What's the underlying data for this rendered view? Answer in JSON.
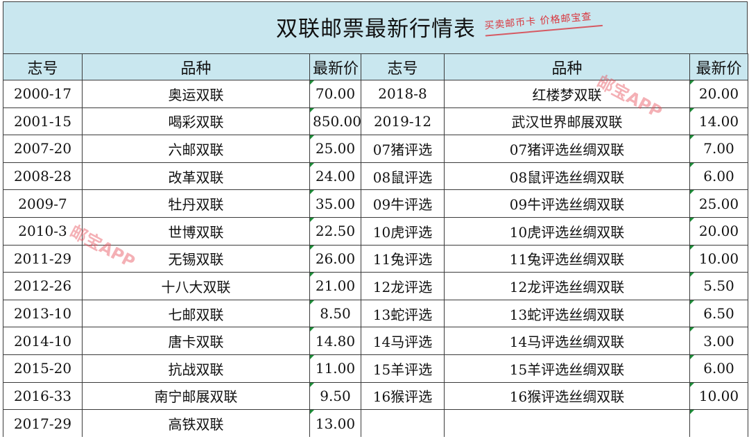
{
  "title": "双联邮票最新行情表",
  "stamp_text": "买卖邮币卡 价格邮宝查",
  "watermark": "邮宝APP",
  "colors": {
    "header_bg": "#c9e7ef",
    "grid_line": "#3a3a3a",
    "stamp_red": "#d9363e",
    "cell_marker": "#1f8f3a"
  },
  "headers": [
    "志号",
    "品种",
    "最新价",
    "志号",
    "品种",
    "最新价"
  ],
  "rows": [
    [
      "2000-17",
      "奥运双联",
      "70.00",
      "2018-8",
      "红楼梦双联",
      "20.00"
    ],
    [
      "2001-15",
      "喝彩双联",
      "850.00",
      "2019-12",
      "武汉世界邮展双联",
      "14.00"
    ],
    [
      "2007-20",
      "六邮双联",
      "25.00",
      "07猪评选",
      "07猪评选丝绸双联",
      "7.00"
    ],
    [
      "2008-28",
      "改革双联",
      "24.00",
      "08鼠评选",
      "08鼠评选丝绸双联",
      "6.00"
    ],
    [
      "2009-7",
      "牡丹双联",
      "35.00",
      "09牛评选",
      "09牛评选丝绸双联",
      "25.00"
    ],
    [
      "2010-3",
      "世博双联",
      "22.50",
      "10虎评选",
      "10虎评选丝绸双联",
      "20.00"
    ],
    [
      "2011-29",
      "无锡双联",
      "26.00",
      "11兔评选",
      "11兔评选丝绸双联",
      "10.00"
    ],
    [
      "2012-26",
      "十八大双联",
      "21.00",
      "12龙评选",
      "12龙评选丝绸双联",
      "5.50"
    ],
    [
      "2013-10",
      "七邮双联",
      "8.50",
      "13蛇评选",
      "13蛇评选丝绸双联",
      "6.50"
    ],
    [
      "2014-10",
      "唐卡双联",
      "14.80",
      "14马评选",
      "14马评选丝绸双联",
      "3.00"
    ],
    [
      "2015-20",
      "抗战双联",
      "11.00",
      "15羊评选",
      "15羊评选丝绸双联",
      "6.00"
    ],
    [
      "2016-33",
      "南宁邮展双联",
      "9.50",
      "16猴评选",
      "16猴评选丝绸双联",
      "10.00"
    ],
    [
      "2017-29",
      "高铁双联",
      "13.00",
      "",
      "",
      ""
    ]
  ]
}
